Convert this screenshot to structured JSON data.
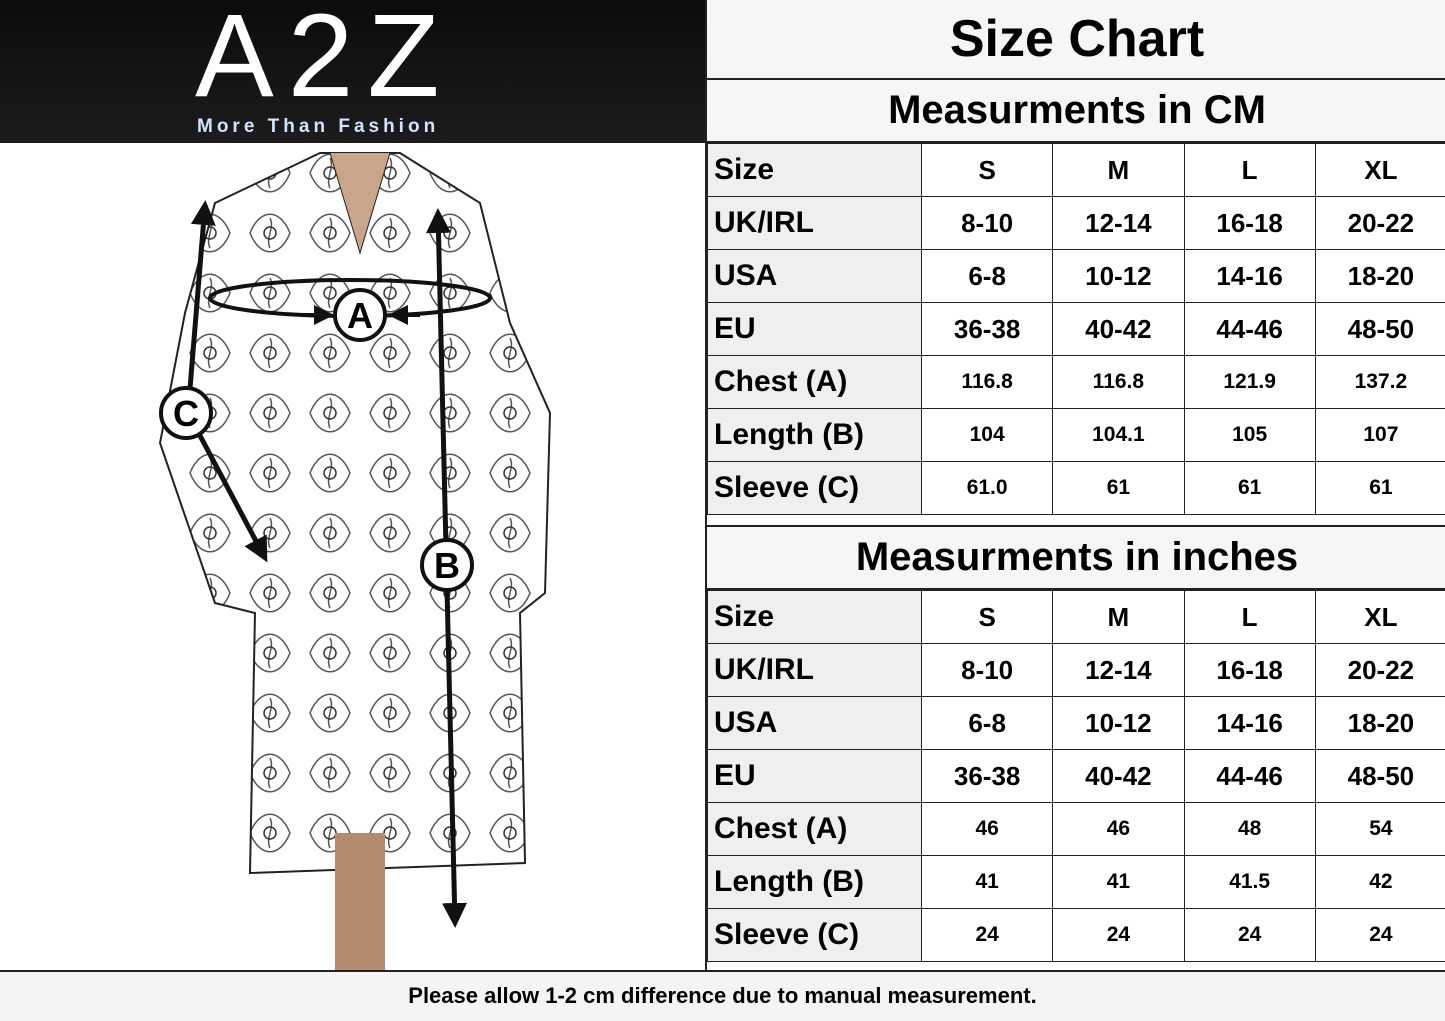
{
  "logo": {
    "brand": "A2Z",
    "tagline": "More Than Fashion"
  },
  "figure": {
    "markers": [
      "A",
      "B",
      "C"
    ]
  },
  "chart": {
    "title": "Size Chart",
    "cm": {
      "heading": "Measurments in CM",
      "columns": [
        "Size",
        "S",
        "M",
        "L",
        "XL"
      ],
      "rows": [
        {
          "label": "UK/IRL",
          "values": [
            "8-10",
            "12-14",
            "16-18",
            "20-22"
          ]
        },
        {
          "label": "USA",
          "values": [
            "6-8",
            "10-12",
            "14-16",
            "18-20"
          ]
        },
        {
          "label": "EU",
          "values": [
            "36-38",
            "40-42",
            "44-46",
            "48-50"
          ]
        },
        {
          "label": "Chest (A)",
          "values": [
            "116.8",
            "116.8",
            "121.9",
            "137.2"
          ]
        },
        {
          "label": "Length (B)",
          "values": [
            "104",
            "104.1",
            "105",
            "107"
          ]
        },
        {
          "label": "Sleeve (C)",
          "values": [
            "61.0",
            "61",
            "61",
            "61"
          ]
        }
      ]
    },
    "inches": {
      "heading": "Measurments in inches",
      "columns": [
        "Size",
        "S",
        "M",
        "L",
        "XL"
      ],
      "rows": [
        {
          "label": "UK/IRL",
          "values": [
            "8-10",
            "12-14",
            "16-18",
            "20-22"
          ]
        },
        {
          "label": "USA",
          "values": [
            "6-8",
            "10-12",
            "14-16",
            "18-20"
          ]
        },
        {
          "label": "EU",
          "values": [
            "36-38",
            "40-42",
            "44-46",
            "48-50"
          ]
        },
        {
          "label": "Chest (A)",
          "values": [
            "46",
            "46",
            "48",
            "54"
          ]
        },
        {
          "label": "Length (B)",
          "values": [
            "41",
            "41",
            "41.5",
            "42"
          ]
        },
        {
          "label": "Sleeve (C)",
          "values": [
            "24",
            "24",
            "24",
            "24"
          ]
        }
      ]
    }
  },
  "footer": "Please allow 1-2 cm difference due to manual measurement."
}
